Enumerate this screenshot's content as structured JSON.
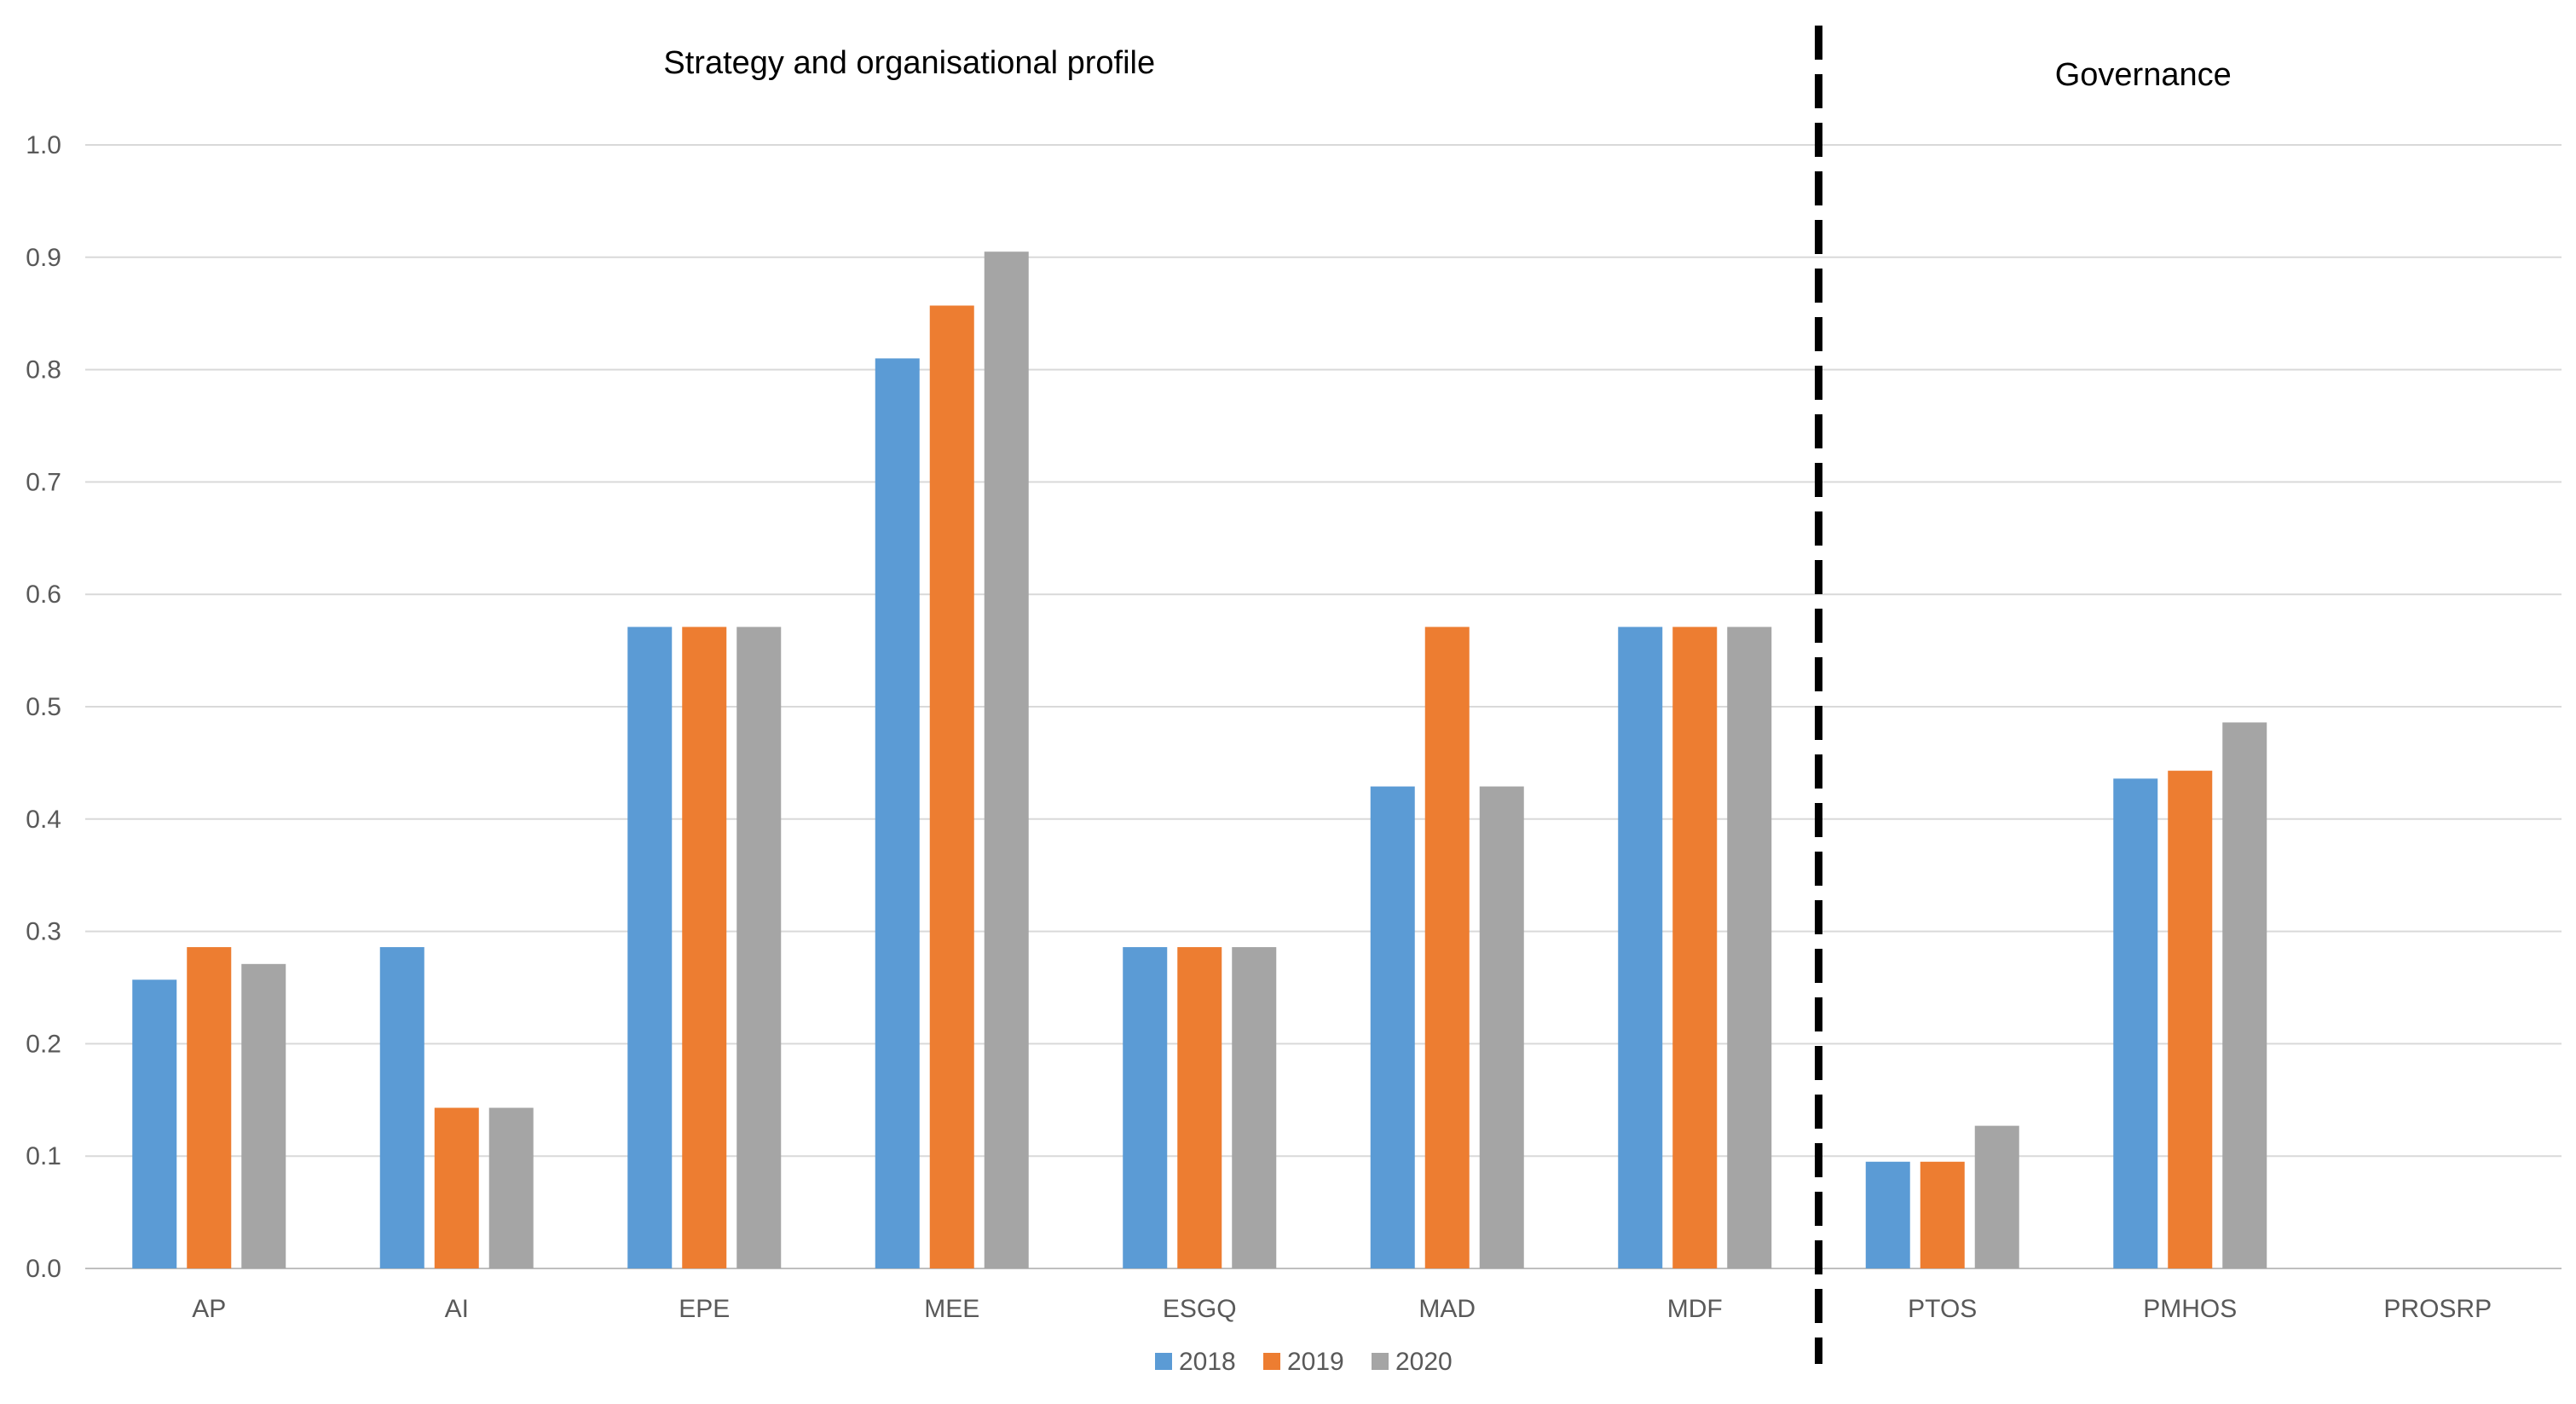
{
  "chart_data": {
    "type": "bar",
    "title": "",
    "xlabel": "",
    "ylabel": "",
    "ylim": [
      0,
      1.0
    ],
    "yticks": [
      "0.0",
      "0.1",
      "0.2",
      "0.3",
      "0.4",
      "0.5",
      "0.6",
      "0.7",
      "0.8",
      "0.9",
      "1.0"
    ],
    "categories": [
      "AP",
      "AI",
      "EPE",
      "MEE",
      "ESGQ",
      "MAD",
      "MDF",
      "PTOS",
      "PMHOS",
      "PROSRP"
    ],
    "series": [
      {
        "name": "2018",
        "color": "#5b9bd5",
        "values": [
          0.257,
          0.286,
          0.571,
          0.81,
          0.286,
          0.429,
          0.571,
          0.095,
          0.436,
          0
        ]
      },
      {
        "name": "2019",
        "color": "#ed7d31",
        "values": [
          0.286,
          0.143,
          0.571,
          0.857,
          0.286,
          0.571,
          0.571,
          0.095,
          0.443,
          0
        ]
      },
      {
        "name": "2020",
        "color": "#a5a5a5",
        "values": [
          0.271,
          0.143,
          0.571,
          0.905,
          0.286,
          0.429,
          0.571,
          0.127,
          0.486,
          0
        ]
      }
    ],
    "sections": [
      {
        "title": "Strategy and organisational profile",
        "categories": [
          "AP",
          "AI",
          "EPE",
          "MEE",
          "ESGQ",
          "MAD",
          "MDF"
        ]
      },
      {
        "title": "Governance",
        "categories": [
          "PTOS",
          "PMHOS",
          "PROSRP"
        ]
      }
    ],
    "legend_position": "bottom-center",
    "grid": true
  }
}
